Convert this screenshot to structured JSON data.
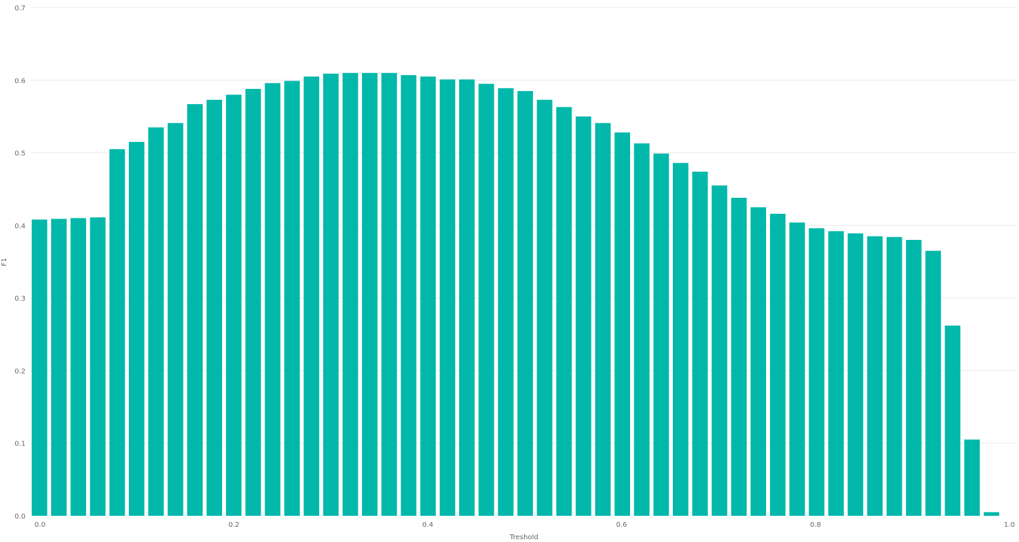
{
  "chart_data": {
    "type": "bar",
    "title": "",
    "xlabel": "Treshold",
    "ylabel": "F1",
    "xlim": [
      0.0,
      1.0
    ],
    "ylim": [
      0.0,
      0.7
    ],
    "grid": "horizontal",
    "legend": "none",
    "bar_color": "#01B8AA",
    "x_ticks": [
      "0.0",
      "0.2",
      "0.4",
      "0.6",
      "0.8",
      "1.0"
    ],
    "x_tick_values": [
      0.0,
      0.2,
      0.4,
      0.6,
      0.8,
      1.0
    ],
    "y_ticks": [
      "0.0",
      "0.1",
      "0.2",
      "0.3",
      "0.4",
      "0.5",
      "0.6",
      "0.7"
    ],
    "y_tick_values": [
      0.0,
      0.1,
      0.2,
      0.3,
      0.4,
      0.5,
      0.6,
      0.7
    ],
    "x": [
      0.0,
      0.02,
      0.04,
      0.06,
      0.08,
      0.1,
      0.12,
      0.14,
      0.16,
      0.18,
      0.2,
      0.22,
      0.24,
      0.26,
      0.28,
      0.3,
      0.32,
      0.34,
      0.36,
      0.38,
      0.4,
      0.42,
      0.44,
      0.46,
      0.48,
      0.5,
      0.52,
      0.54,
      0.56,
      0.58,
      0.6,
      0.62,
      0.64,
      0.66,
      0.68,
      0.7,
      0.72,
      0.74,
      0.76,
      0.78,
      0.8,
      0.82,
      0.84,
      0.86,
      0.88,
      0.9,
      0.92,
      0.94,
      0.96,
      0.98
    ],
    "values": [
      0.408,
      0.409,
      0.41,
      0.411,
      0.505,
      0.515,
      0.535,
      0.541,
      0.567,
      0.573,
      0.58,
      0.588,
      0.596,
      0.599,
      0.605,
      0.609,
      0.61,
      0.61,
      0.61,
      0.607,
      0.605,
      0.601,
      0.601,
      0.595,
      0.589,
      0.585,
      0.573,
      0.563,
      0.55,
      0.541,
      0.528,
      0.513,
      0.499,
      0.486,
      0.474,
      0.455,
      0.438,
      0.425,
      0.416,
      0.404,
      0.396,
      0.392,
      0.389,
      0.385,
      0.384,
      0.38,
      0.365,
      0.262,
      0.105,
      0.005
    ]
  }
}
